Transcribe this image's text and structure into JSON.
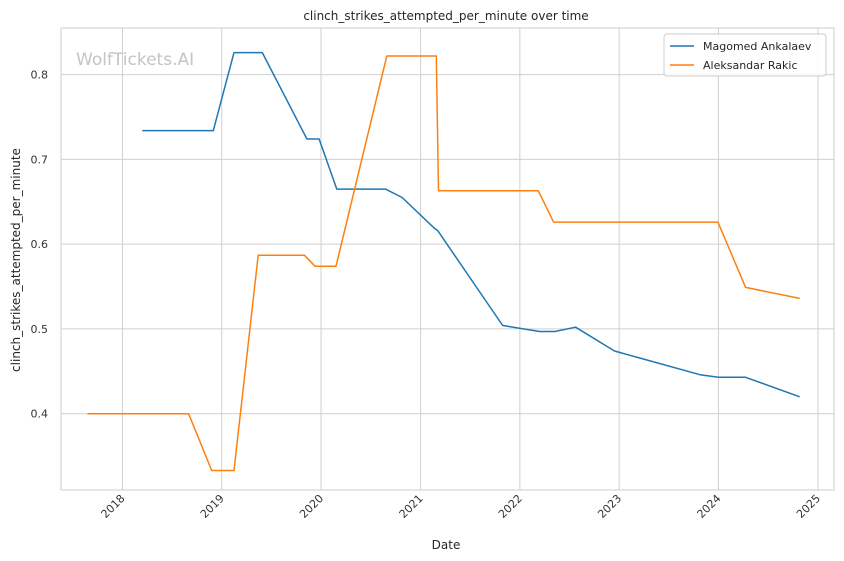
{
  "chart_data": {
    "type": "line",
    "title": "clinch_strikes_attempted_per_minute over time",
    "xlabel": "Date",
    "ylabel": "clinch_strikes_attempted_per_minute",
    "x_ticks": [
      "2018",
      "2019",
      "2020",
      "2021",
      "2022",
      "2023",
      "2024",
      "2025"
    ],
    "y_ticks": [
      "0.4",
      "0.5",
      "0.6",
      "0.7",
      "0.8"
    ],
    "xlim": [
      "2017-05-20",
      "2025-03-01"
    ],
    "ylim": [
      0.31,
      0.855
    ],
    "grid": true,
    "legend_position": "top-right",
    "watermark": "WolfTickets.AI",
    "series": [
      {
        "name": "Magomed Ankalaev",
        "color": "#1f77b4",
        "points": [
          [
            "2018-03-15",
            0.734
          ],
          [
            "2018-12-01",
            0.734
          ],
          [
            "2019-02-15",
            0.826
          ],
          [
            "2019-05-30",
            0.826
          ],
          [
            "2019-11-10",
            0.724
          ],
          [
            "2019-12-25",
            0.724
          ],
          [
            "2020-02-28",
            0.665
          ],
          [
            "2020-08-25",
            0.665
          ],
          [
            "2020-10-25",
            0.655
          ],
          [
            "2021-02-20",
            0.619
          ],
          [
            "2021-03-05",
            0.616
          ],
          [
            "2021-10-30",
            0.504
          ],
          [
            "2022-03-15",
            0.497
          ],
          [
            "2022-05-10",
            0.497
          ],
          [
            "2022-07-25",
            0.502
          ],
          [
            "2022-12-15",
            0.474
          ],
          [
            "2023-10-25",
            0.446
          ],
          [
            "2024-01-01",
            0.443
          ],
          [
            "2024-04-10",
            0.443
          ],
          [
            "2024-10-26",
            0.42
          ]
        ]
      },
      {
        "name": "Aleksandar Rakic",
        "color": "#ff7f0e",
        "points": [
          [
            "2017-08-25",
            0.4
          ],
          [
            "2018-09-01",
            0.4
          ],
          [
            "2018-11-25",
            0.333
          ],
          [
            "2019-02-15",
            0.333
          ],
          [
            "2019-05-15",
            0.587
          ],
          [
            "2019-11-01",
            0.587
          ],
          [
            "2019-12-10",
            0.574
          ],
          [
            "2020-02-25",
            0.574
          ],
          [
            "2020-08-30",
            0.822
          ],
          [
            "2021-02-28",
            0.822
          ],
          [
            "2021-03-08",
            0.663
          ],
          [
            "2022-03-10",
            0.663
          ],
          [
            "2022-05-05",
            0.626
          ],
          [
            "2023-12-30",
            0.626
          ],
          [
            "2024-04-10",
            0.549
          ],
          [
            "2024-10-26",
            0.536
          ]
        ]
      }
    ]
  }
}
